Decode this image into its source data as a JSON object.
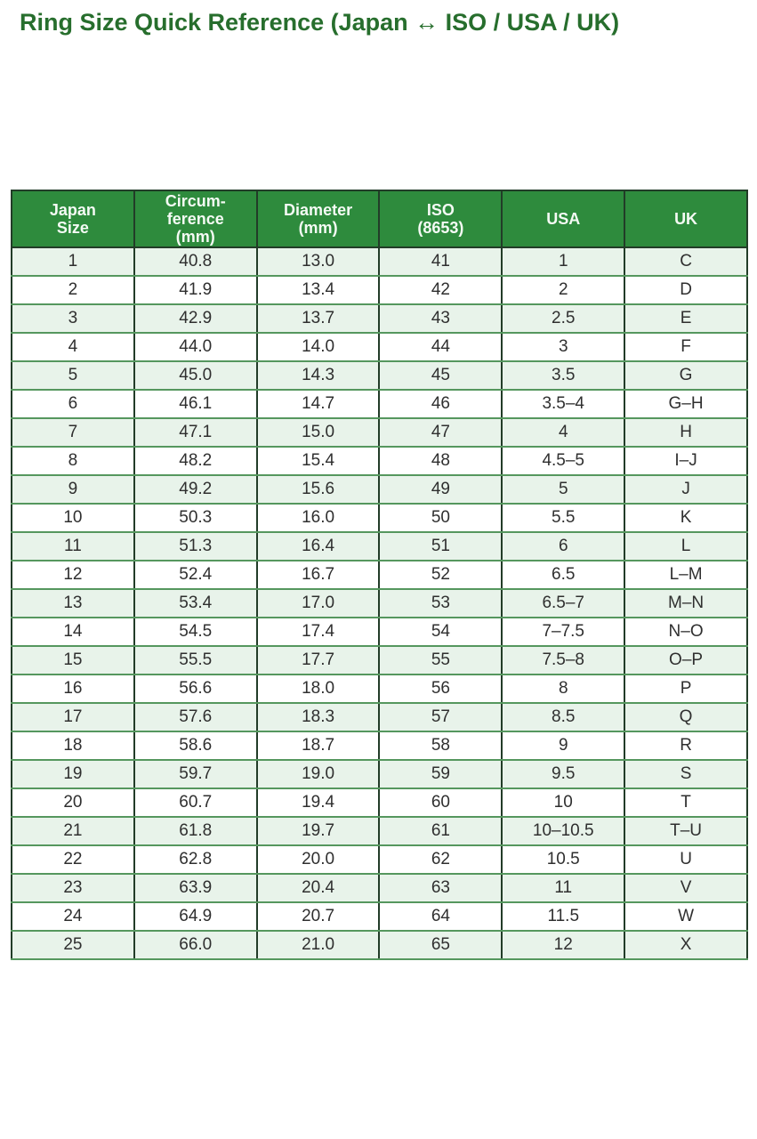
{
  "page": {
    "title": "Ring Size Quick Reference (Japan ↔ ISO / USA / UK)"
  },
  "colors": {
    "title_text": "#276e2d",
    "header_bg": "#2e8b3d",
    "header_text": "#f4faf4",
    "row_stripe_bg": "#e8f3ea",
    "row_plain_bg": "#ffffff",
    "border_dark": "#223c28",
    "border_light": "#55975e",
    "body_text": "#2f2f2f"
  },
  "table": {
    "columns": [
      {
        "id": "japan-size",
        "label": "Japan\nSize"
      },
      {
        "id": "circumference-mm",
        "label": "Circum-\nference\n(mm)"
      },
      {
        "id": "diameter-mm",
        "label": "Diameter\n(mm)"
      },
      {
        "id": "iso-8653",
        "label": "ISO\n(8653)"
      },
      {
        "id": "usa",
        "label": "USA"
      },
      {
        "id": "uk",
        "label": "UK"
      }
    ]
  },
  "chart_data": {
    "type": "table",
    "title": "Ring Size Quick Reference (Japan ↔ ISO / USA / UK)",
    "columns": [
      "Japan Size",
      "Circumference (mm)",
      "Diameter (mm)",
      "ISO (8653)",
      "USA",
      "UK"
    ],
    "rows": [
      [
        "1",
        "40.8",
        "13.0",
        "41",
        "1",
        "C"
      ],
      [
        "2",
        "41.9",
        "13.4",
        "42",
        "2",
        "D"
      ],
      [
        "3",
        "42.9",
        "13.7",
        "43",
        "2.5",
        "E"
      ],
      [
        "4",
        "44.0",
        "14.0",
        "44",
        "3",
        "F"
      ],
      [
        "5",
        "45.0",
        "14.3",
        "45",
        "3.5",
        "G"
      ],
      [
        "6",
        "46.1",
        "14.7",
        "46",
        "3.5–4",
        "G–H"
      ],
      [
        "7",
        "47.1",
        "15.0",
        "47",
        "4",
        "H"
      ],
      [
        "8",
        "48.2",
        "15.4",
        "48",
        "4.5–5",
        "I–J"
      ],
      [
        "9",
        "49.2",
        "15.6",
        "49",
        "5",
        "J"
      ],
      [
        "10",
        "50.3",
        "16.0",
        "50",
        "5.5",
        "K"
      ],
      [
        "11",
        "51.3",
        "16.4",
        "51",
        "6",
        "L"
      ],
      [
        "12",
        "52.4",
        "16.7",
        "52",
        "6.5",
        "L–M"
      ],
      [
        "13",
        "53.4",
        "17.0",
        "53",
        "6.5–7",
        "M–N"
      ],
      [
        "14",
        "54.5",
        "17.4",
        "54",
        "7–7.5",
        "N–O"
      ],
      [
        "15",
        "55.5",
        "17.7",
        "55",
        "7.5–8",
        "O–P"
      ],
      [
        "16",
        "56.6",
        "18.0",
        "56",
        "8",
        "P"
      ],
      [
        "17",
        "57.6",
        "18.3",
        "57",
        "8.5",
        "Q"
      ],
      [
        "18",
        "58.6",
        "18.7",
        "58",
        "9",
        "R"
      ],
      [
        "19",
        "59.7",
        "19.0",
        "59",
        "9.5",
        "S"
      ],
      [
        "20",
        "60.7",
        "19.4",
        "60",
        "10",
        "T"
      ],
      [
        "21",
        "61.8",
        "19.7",
        "61",
        "10–10.5",
        "T–U"
      ],
      [
        "22",
        "62.8",
        "20.0",
        "62",
        "10.5",
        "U"
      ],
      [
        "23",
        "63.9",
        "20.4",
        "63",
        "11",
        "V"
      ],
      [
        "24",
        "64.9",
        "20.7",
        "64",
        "11.5",
        "W"
      ],
      [
        "25",
        "66.0",
        "21.0",
        "65",
        "12",
        "X"
      ]
    ]
  }
}
